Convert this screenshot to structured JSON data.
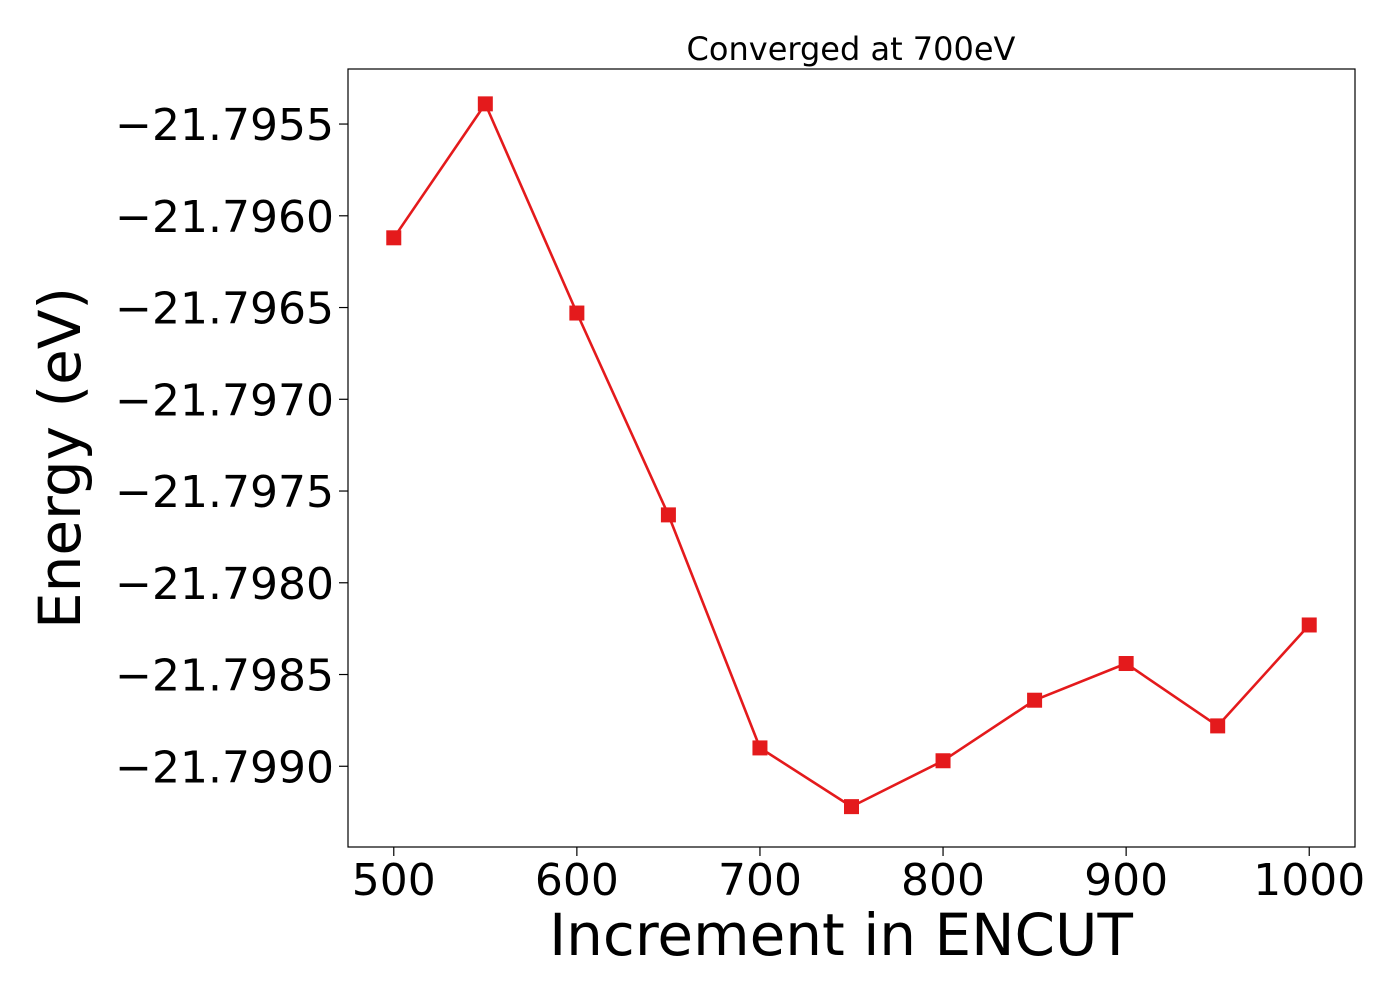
{
  "colors": {
    "series": "#e41a1c",
    "axis": "#000000",
    "background": "#ffffff"
  },
  "chart_data": {
    "type": "line",
    "title": "Converged at 700eV",
    "xlabel": "Increment in ENCUT",
    "ylabel": "Energy (eV)",
    "xlim": [
      475,
      1025
    ],
    "ylim": [
      -21.79944,
      -21.7952
    ],
    "grid": false,
    "legend": "none",
    "marker": "square",
    "x_ticks": [
      500,
      600,
      700,
      800,
      900,
      1000
    ],
    "x_tick_labels": [
      "500",
      "600",
      "700",
      "800",
      "900",
      "1000"
    ],
    "y_ticks": [
      -21.7955,
      -21.796,
      -21.7965,
      -21.797,
      -21.7975,
      -21.798,
      -21.7985,
      -21.799
    ],
    "y_tick_labels": [
      "−21.7955",
      "−21.7960",
      "−21.7965",
      "−21.7970",
      "−21.7975",
      "−21.7980",
      "−21.7985",
      "−21.7990"
    ],
    "series": [
      {
        "x": [
          500,
          550,
          600,
          650,
          700,
          750,
          800,
          850,
          900,
          950,
          1000
        ],
        "values": [
          -21.79612,
          -21.79539,
          -21.79653,
          -21.79763,
          -21.7989,
          -21.79922,
          -21.79897,
          -21.79864,
          -21.79844,
          -21.79878,
          -21.79823
        ]
      }
    ]
  }
}
